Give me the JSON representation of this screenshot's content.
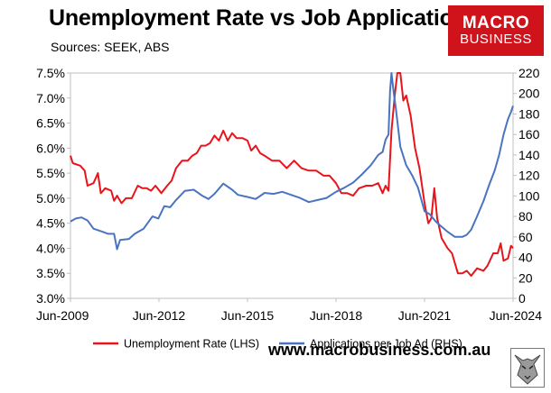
{
  "header": {
    "title": "Unemployment Rate vs Job Applications",
    "subtitle": "Sources: SEEK, ABS"
  },
  "logo": {
    "line1": "MACRO",
    "line2": "BUSINESS",
    "color": "#d0121b"
  },
  "footer": {
    "website": "www.macrobusiness.com.au"
  },
  "chart_data": {
    "type": "line",
    "title": "Unemployment Rate vs Job Applications",
    "x_range": [
      2009.42,
      2024.42
    ],
    "x_ticks": [
      {
        "label": "Jun-2009",
        "x": 2009.42
      },
      {
        "label": "Jun-2012",
        "x": 2012.42
      },
      {
        "label": "Jun-2015",
        "x": 2015.42
      },
      {
        "label": "Jun-2018",
        "x": 2018.42
      },
      {
        "label": "Jun-2021",
        "x": 2021.42
      },
      {
        "label": "Jun-2024",
        "x": 2024.42
      }
    ],
    "y_left": {
      "range": [
        3.0,
        7.5
      ],
      "ticks": [
        "3.0%",
        "3.5%",
        "4.0%",
        "4.5%",
        "5.0%",
        "5.5%",
        "6.0%",
        "6.5%",
        "7.0%",
        "7.5%"
      ],
      "tick_values": [
        3.0,
        3.5,
        4.0,
        4.5,
        5.0,
        5.5,
        6.0,
        6.5,
        7.0,
        7.5
      ]
    },
    "y_right": {
      "range": [
        0,
        220
      ],
      "ticks": [
        "0",
        "20",
        "40",
        "60",
        "80",
        "100",
        "120",
        "140",
        "160",
        "180",
        "200",
        "220"
      ],
      "tick_values": [
        0,
        20,
        40,
        60,
        80,
        100,
        120,
        140,
        160,
        180,
        200,
        220
      ]
    },
    "grid": false,
    "legend_position": "bottom",
    "series": [
      {
        "name": "Unemployment Rate (LHS)",
        "axis": "left",
        "color": "#e8141c",
        "points": [
          [
            2009.42,
            5.85
          ],
          [
            2009.5,
            5.7
          ],
          [
            2009.75,
            5.65
          ],
          [
            2009.9,
            5.55
          ],
          [
            2010.0,
            5.25
          ],
          [
            2010.2,
            5.3
          ],
          [
            2010.35,
            5.5
          ],
          [
            2010.45,
            5.1
          ],
          [
            2010.6,
            5.2
          ],
          [
            2010.8,
            5.15
          ],
          [
            2010.9,
            4.95
          ],
          [
            2011.0,
            5.05
          ],
          [
            2011.15,
            4.9
          ],
          [
            2011.3,
            5.0
          ],
          [
            2011.5,
            5.0
          ],
          [
            2011.7,
            5.25
          ],
          [
            2011.85,
            5.2
          ],
          [
            2012.0,
            5.2
          ],
          [
            2012.15,
            5.15
          ],
          [
            2012.3,
            5.25
          ],
          [
            2012.5,
            5.1
          ],
          [
            2012.7,
            5.25
          ],
          [
            2012.85,
            5.35
          ],
          [
            2013.0,
            5.6
          ],
          [
            2013.2,
            5.75
          ],
          [
            2013.4,
            5.75
          ],
          [
            2013.55,
            5.85
          ],
          [
            2013.7,
            5.9
          ],
          [
            2013.85,
            6.05
          ],
          [
            2014.0,
            6.05
          ],
          [
            2014.15,
            6.1
          ],
          [
            2014.3,
            6.25
          ],
          [
            2014.45,
            6.15
          ],
          [
            2014.6,
            6.35
          ],
          [
            2014.75,
            6.15
          ],
          [
            2014.9,
            6.3
          ],
          [
            2015.05,
            6.2
          ],
          [
            2015.25,
            6.2
          ],
          [
            2015.42,
            6.15
          ],
          [
            2015.55,
            5.95
          ],
          [
            2015.7,
            6.05
          ],
          [
            2015.85,
            5.9
          ],
          [
            2016.0,
            5.85
          ],
          [
            2016.25,
            5.75
          ],
          [
            2016.5,
            5.75
          ],
          [
            2016.75,
            5.6
          ],
          [
            2017.0,
            5.75
          ],
          [
            2017.25,
            5.6
          ],
          [
            2017.5,
            5.55
          ],
          [
            2017.75,
            5.55
          ],
          [
            2018.0,
            5.45
          ],
          [
            2018.2,
            5.45
          ],
          [
            2018.42,
            5.3
          ],
          [
            2018.6,
            5.1
          ],
          [
            2018.8,
            5.1
          ],
          [
            2019.0,
            5.05
          ],
          [
            2019.2,
            5.2
          ],
          [
            2019.45,
            5.25
          ],
          [
            2019.65,
            5.25
          ],
          [
            2019.85,
            5.3
          ],
          [
            2020.0,
            5.1
          ],
          [
            2020.1,
            5.25
          ],
          [
            2020.2,
            5.15
          ],
          [
            2020.3,
            6.35
          ],
          [
            2020.42,
            7.1
          ],
          [
            2020.5,
            7.5
          ],
          [
            2020.6,
            7.5
          ],
          [
            2020.7,
            6.95
          ],
          [
            2020.8,
            7.05
          ],
          [
            2020.95,
            6.65
          ],
          [
            2021.1,
            6.0
          ],
          [
            2021.25,
            5.6
          ],
          [
            2021.42,
            4.9
          ],
          [
            2021.55,
            4.5
          ],
          [
            2021.65,
            4.6
          ],
          [
            2021.75,
            5.2
          ],
          [
            2021.85,
            4.6
          ],
          [
            2022.0,
            4.2
          ],
          [
            2022.2,
            4.0
          ],
          [
            2022.35,
            3.9
          ],
          [
            2022.55,
            3.5
          ],
          [
            2022.7,
            3.5
          ],
          [
            2022.85,
            3.55
          ],
          [
            2023.0,
            3.45
          ],
          [
            2023.2,
            3.6
          ],
          [
            2023.42,
            3.55
          ],
          [
            2023.55,
            3.65
          ],
          [
            2023.75,
            3.9
          ],
          [
            2023.9,
            3.9
          ],
          [
            2024.0,
            4.1
          ],
          [
            2024.1,
            3.75
          ],
          [
            2024.25,
            3.8
          ],
          [
            2024.35,
            4.05
          ],
          [
            2024.42,
            4.0
          ]
        ]
      },
      {
        "name": "Applications per Job Ad (RHS)",
        "axis": "right",
        "color": "#4a74c0",
        "points": [
          [
            2009.42,
            75
          ],
          [
            2009.6,
            78
          ],
          [
            2009.8,
            79
          ],
          [
            2010.0,
            76
          ],
          [
            2010.2,
            68
          ],
          [
            2010.5,
            65
          ],
          [
            2010.7,
            63
          ],
          [
            2010.9,
            63
          ],
          [
            2011.0,
            48
          ],
          [
            2011.1,
            57
          ],
          [
            2011.4,
            58
          ],
          [
            2011.6,
            63
          ],
          [
            2011.9,
            68
          ],
          [
            2012.2,
            80
          ],
          [
            2012.4,
            78
          ],
          [
            2012.6,
            90
          ],
          [
            2012.8,
            89
          ],
          [
            2013.0,
            96
          ],
          [
            2013.3,
            105
          ],
          [
            2013.6,
            106
          ],
          [
            2013.9,
            100
          ],
          [
            2014.1,
            97
          ],
          [
            2014.3,
            102
          ],
          [
            2014.6,
            112
          ],
          [
            2014.9,
            106
          ],
          [
            2015.1,
            101
          ],
          [
            2015.42,
            99
          ],
          [
            2015.7,
            97
          ],
          [
            2016.0,
            103
          ],
          [
            2016.3,
            102
          ],
          [
            2016.6,
            104
          ],
          [
            2016.9,
            101
          ],
          [
            2017.2,
            98
          ],
          [
            2017.5,
            94
          ],
          [
            2017.8,
            96
          ],
          [
            2018.1,
            98
          ],
          [
            2018.42,
            104
          ],
          [
            2018.7,
            108
          ],
          [
            2019.0,
            113
          ],
          [
            2019.3,
            121
          ],
          [
            2019.6,
            130
          ],
          [
            2019.85,
            140
          ],
          [
            2020.0,
            143
          ],
          [
            2020.1,
            155
          ],
          [
            2020.2,
            160
          ],
          [
            2020.25,
            202
          ],
          [
            2020.3,
            220
          ],
          [
            2020.38,
            200
          ],
          [
            2020.45,
            185
          ],
          [
            2020.6,
            148
          ],
          [
            2020.8,
            130
          ],
          [
            2021.0,
            120
          ],
          [
            2021.2,
            108
          ],
          [
            2021.42,
            85
          ],
          [
            2021.6,
            82
          ],
          [
            2021.8,
            75
          ],
          [
            2022.0,
            70
          ],
          [
            2022.2,
            65
          ],
          [
            2022.45,
            60
          ],
          [
            2022.7,
            60
          ],
          [
            2022.85,
            62
          ],
          [
            2023.0,
            67
          ],
          [
            2023.2,
            80
          ],
          [
            2023.42,
            95
          ],
          [
            2023.6,
            110
          ],
          [
            2023.8,
            125
          ],
          [
            2023.95,
            140
          ],
          [
            2024.1,
            160
          ],
          [
            2024.25,
            175
          ],
          [
            2024.35,
            182
          ],
          [
            2024.42,
            188
          ]
        ]
      }
    ]
  }
}
